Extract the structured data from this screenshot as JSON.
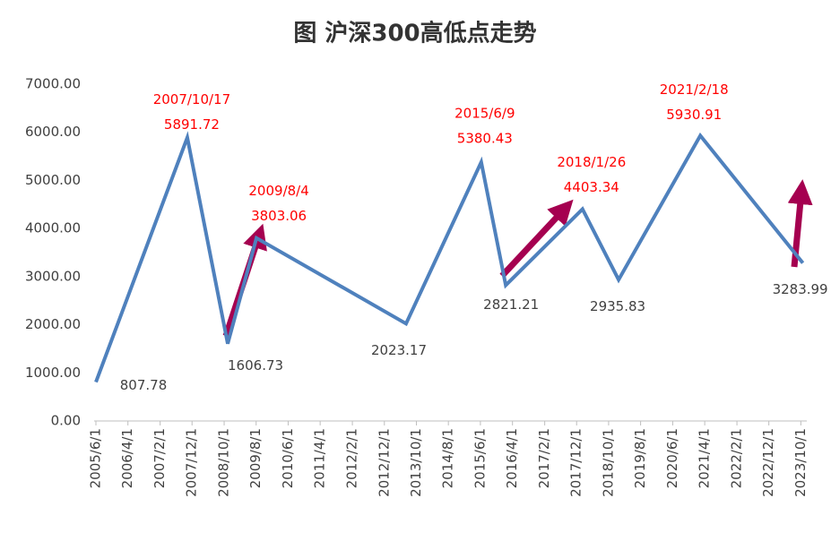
{
  "chart_data": {
    "type": "line",
    "title": "图 沪深300高低点走势",
    "x": [
      "2005/6/1",
      "2007/10/17",
      "2008/11/4",
      "2009/8/4",
      "2013/6/25",
      "2015/6/9",
      "2016/1/28",
      "2018/1/26",
      "2019/1/4",
      "2021/2/18",
      "2023/10/20"
    ],
    "series": [
      {
        "name": "沪深300",
        "color": "#4f81bd",
        "values": [
          807.78,
          5891.72,
          1606.73,
          3803.06,
          2023.17,
          5380.43,
          2821.21,
          4403.34,
          2935.83,
          5930.91,
          3283.99
        ]
      }
    ],
    "xlim": [
      "2005/6/1",
      "2023/11/1"
    ],
    "xticks": [
      "2005/6/1",
      "2006/4/1",
      "2007/2/1",
      "2007/12/1",
      "2008/10/1",
      "2009/8/1",
      "2010/6/1",
      "2011/4/1",
      "2012/2/1",
      "2012/12/1",
      "2013/10/1",
      "2014/8/1",
      "2015/6/1",
      "2016/4/1",
      "2017/2/1",
      "2017/12/1",
      "2018/10/1",
      "2019/8/1",
      "2020/6/1",
      "2021/4/1",
      "2022/2/1",
      "2022/12/1",
      "2023/10/1"
    ],
    "ylim": [
      0,
      7000
    ],
    "yticks": [
      {
        "value": 0,
        "label": "0.00"
      },
      {
        "value": 1000,
        "label": "1000.00"
      },
      {
        "value": 2000,
        "label": "2000.00"
      },
      {
        "value": 3000,
        "label": "3000.00"
      },
      {
        "value": 4000,
        "label": "4000.00"
      },
      {
        "value": 5000,
        "label": "5000.00"
      },
      {
        "value": 6000,
        "label": "6000.00"
      },
      {
        "value": 7000,
        "label": "7000.00"
      }
    ],
    "grid": false
  }
}
